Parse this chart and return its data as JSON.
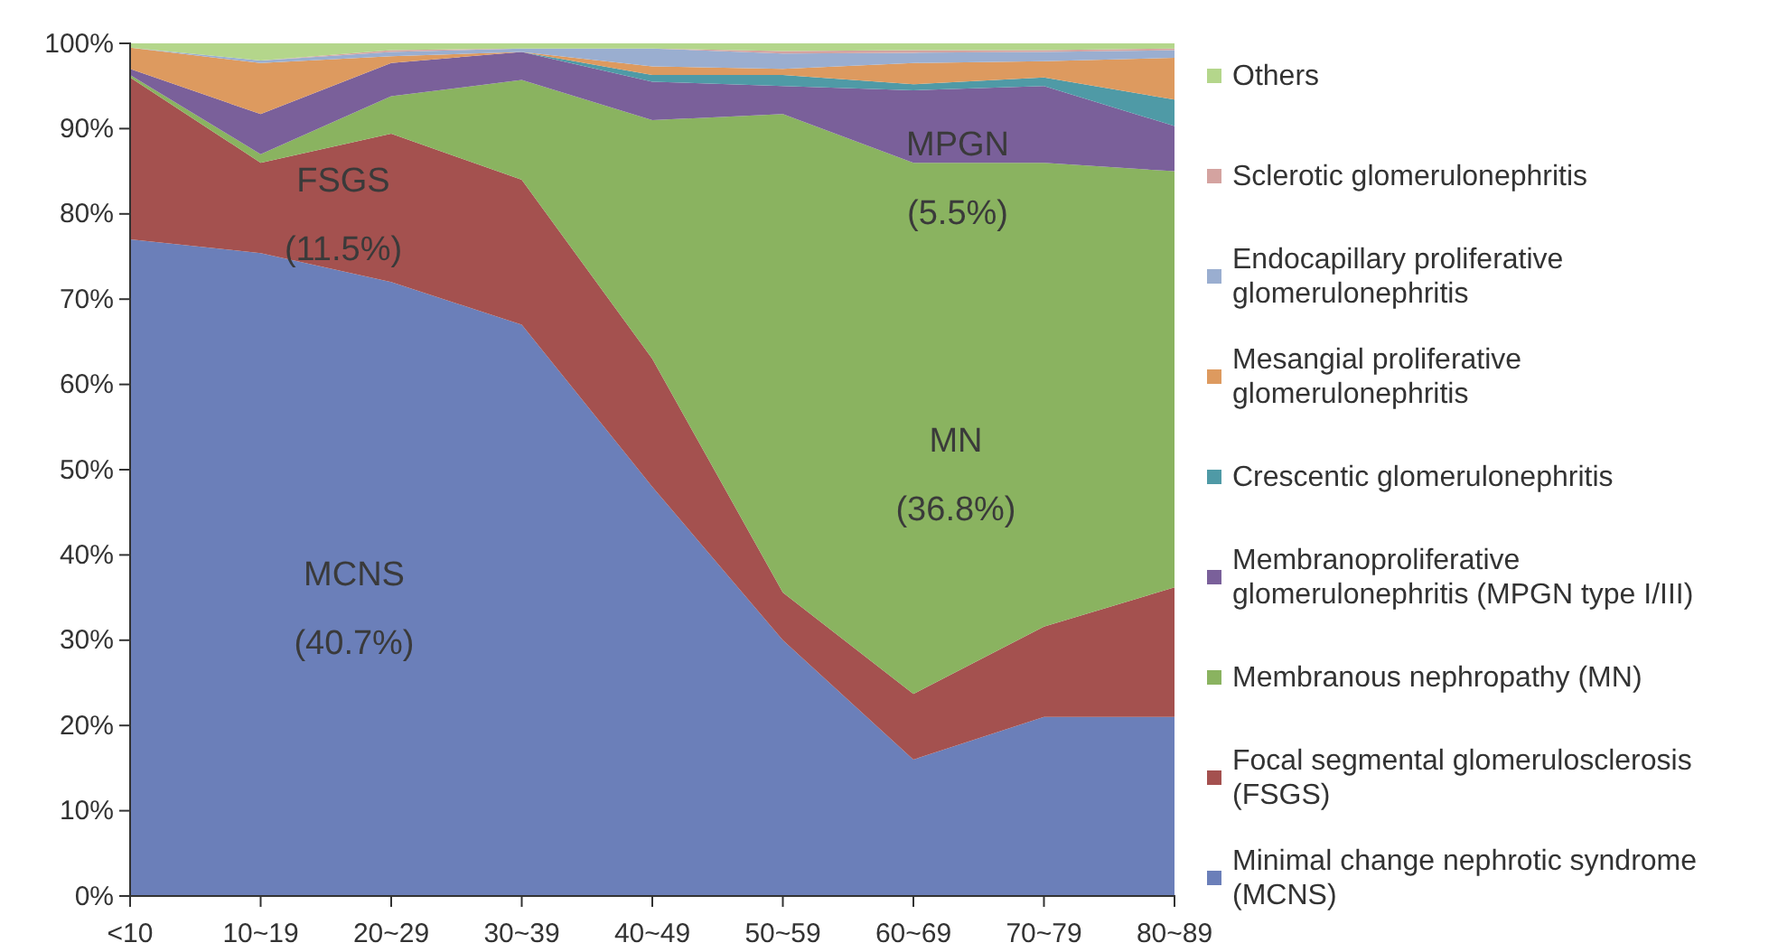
{
  "chart_data": {
    "type": "area",
    "stacked": true,
    "categories": [
      "<10",
      "10~19",
      "20~29",
      "30~39",
      "40~49",
      "50~59",
      "60~69",
      "70~79",
      "80~89"
    ],
    "series": [
      {
        "name": "Minimal change nephrotic syndrome (MCNS)",
        "color": "#6b7fb9",
        "values": [
          77,
          75.4,
          72,
          67,
          48,
          30,
          16,
          21,
          21
        ]
      },
      {
        "name": "Focal segmental glomerulosclerosis (FSGS)",
        "color": "#a4514f",
        "values": [
          19,
          10.6,
          17.4,
          17,
          15,
          5.6,
          7.7,
          10.6,
          15.2
        ]
      },
      {
        "name": "Membranous nephropathy (MN)",
        "color": "#8ab360",
        "values": [
          0.3,
          1,
          4.4,
          11.7,
          28,
          56.1,
          62.3,
          54.4,
          48.8
        ]
      },
      {
        "name": "Membranoproliferative glomerulonephritis (MPGN type I/III)",
        "color": "#7a609a",
        "values": [
          0.7,
          4.7,
          3.9,
          3.3,
          4.5,
          3.3,
          8.5,
          9,
          5.3
        ]
      },
      {
        "name": "Crescentic glomerulonephritis",
        "color": "#4f9aa6",
        "values": [
          0,
          0,
          0,
          0,
          0.8,
          1.3,
          0.7,
          1,
          3.1
        ]
      },
      {
        "name": "Mesangial proliferative glomerulonephritis",
        "color": "#dd9a5f",
        "values": [
          2.5,
          6,
          0.8,
          0,
          1,
          0.7,
          2.5,
          1.9,
          4.9
        ]
      },
      {
        "name": "Endocapillary proliferative glomerulonephritis",
        "color": "#9aaed0",
        "values": [
          0,
          0.3,
          0.5,
          0.4,
          2.1,
          1.8,
          1.2,
          1.1,
          0.9
        ]
      },
      {
        "name": "Sclerotic glomerulonephritis",
        "color": "#d4a3a0",
        "values": [
          0,
          0,
          0.2,
          0,
          0,
          0.3,
          0.3,
          0.2,
          0.2
        ]
      },
      {
        "name": "Others",
        "color": "#b4d68b",
        "values": [
          0.5,
          2,
          0.8,
          0.6,
          0.6,
          0.9,
          0.8,
          0.8,
          0.6
        ]
      }
    ],
    "ylim": [
      0,
      100
    ],
    "yticks": [
      {
        "value": 0,
        "label": "0%"
      },
      {
        "value": 10,
        "label": "10%"
      },
      {
        "value": 20,
        "label": "20%"
      },
      {
        "value": 30,
        "label": "30%"
      },
      {
        "value": 40,
        "label": "40%"
      },
      {
        "value": 50,
        "label": "50%"
      },
      {
        "value": 60,
        "label": "60%"
      },
      {
        "value": 70,
        "label": "70%"
      },
      {
        "value": 80,
        "label": "80%"
      },
      {
        "value": 90,
        "label": "90%"
      },
      {
        "value": 100,
        "label": "100%"
      }
    ],
    "annotations": [
      "MCNS\n(40.7%)",
      "FSGS\n(11.5%)",
      "MPGN\n(5.5%)",
      "MN\n(36.8%)"
    ],
    "legend": "right",
    "grid": false
  }
}
